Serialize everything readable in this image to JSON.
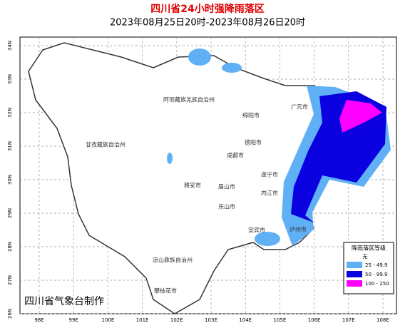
{
  "header": {
    "title": "四川省24小时强降雨落区",
    "subtitle": "2023年08月25日20时-2023年08月26日20时"
  },
  "map": {
    "lat_labels": [
      "34N",
      "33N",
      "32N",
      "31N",
      "30N",
      "29N",
      "28N",
      "27N",
      "26N"
    ],
    "lon_labels": [
      "98E",
      "99E",
      "100E",
      "101E",
      "102E",
      "103E",
      "104E",
      "105E",
      "106E",
      "107E",
      "108E"
    ],
    "places": [
      "阿坝藏族羌族自治州",
      "甘孜藏族自治州",
      "广元市",
      "绵阳市",
      "德阳市",
      "成都市",
      "雅安市",
      "眉山市",
      "乐山市",
      "遂宁市",
      "内江市",
      "宜宾市",
      "泸州市",
      "凉山彝族自治州",
      "攀枝花市"
    ]
  },
  "legend": {
    "title": "降雨落区等级",
    "items": [
      "无",
      "25 - 49.9",
      "50 - 99.9",
      "100 - 250"
    ]
  },
  "footer": {
    "producer": "四川省气象台制作"
  }
}
